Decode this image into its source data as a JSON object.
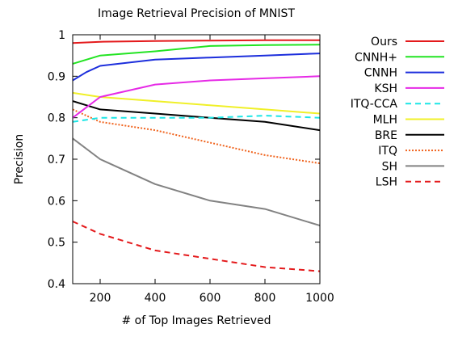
{
  "chart_data": {
    "type": "line",
    "title": "Image Retrieval Precision of MNIST",
    "xlabel": "# of Top Images Retrieved",
    "ylabel": "Precision",
    "xlim": [
      100,
      1000
    ],
    "ylim": [
      0.4,
      1.0
    ],
    "xticks": [
      200,
      400,
      600,
      800,
      1000
    ],
    "yticks": [
      0.4,
      0.5,
      0.6,
      0.7,
      0.8,
      0.9,
      1.0
    ],
    "ytick_labels": [
      "0.4",
      "0.5",
      "0.6",
      "0.7",
      "0.8",
      "0.9",
      "1"
    ],
    "xtick_labels": [
      "200",
      "400",
      "600",
      "800",
      "1000"
    ],
    "grid": false,
    "legend_position": "outside-right",
    "series": [
      {
        "name": "Ours",
        "color": "#e41a1c",
        "dash": "solid",
        "x": [
          100,
          200,
          400,
          600,
          800,
          1000
        ],
        "y": [
          0.98,
          0.983,
          0.985,
          0.986,
          0.987,
          0.987
        ]
      },
      {
        "name": "CNNH+",
        "color": "#22e422",
        "dash": "solid",
        "x": [
          100,
          200,
          400,
          600,
          800,
          1000
        ],
        "y": [
          0.93,
          0.95,
          0.96,
          0.973,
          0.975,
          0.976
        ]
      },
      {
        "name": "CNNH",
        "color": "#1c2edc",
        "dash": "solid",
        "x": [
          100,
          150,
          200,
          400,
          600,
          800,
          1000
        ],
        "y": [
          0.89,
          0.91,
          0.925,
          0.94,
          0.945,
          0.95,
          0.955
        ]
      },
      {
        "name": "KSH",
        "color": "#e62ae6",
        "dash": "solid",
        "x": [
          100,
          200,
          400,
          600,
          800,
          1000
        ],
        "y": [
          0.8,
          0.85,
          0.88,
          0.89,
          0.895,
          0.9
        ]
      },
      {
        "name": "ITQ-CCA",
        "color": "#1ce6e6",
        "dash": "dashed",
        "x": [
          100,
          200,
          400,
          600,
          800,
          1000
        ],
        "y": [
          0.79,
          0.8,
          0.8,
          0.8,
          0.805,
          0.8
        ]
      },
      {
        "name": "MLH",
        "color": "#f0f028",
        "dash": "solid",
        "x": [
          100,
          200,
          400,
          600,
          800,
          1000
        ],
        "y": [
          0.86,
          0.85,
          0.84,
          0.83,
          0.82,
          0.81
        ]
      },
      {
        "name": "BRE",
        "color": "#000000",
        "dash": "solid",
        "x": [
          100,
          200,
          400,
          600,
          800,
          1000
        ],
        "y": [
          0.84,
          0.82,
          0.81,
          0.8,
          0.79,
          0.77
        ]
      },
      {
        "name": "ITQ",
        "color": "#f0641e",
        "dash": "dotted",
        "x": [
          100,
          200,
          400,
          600,
          800,
          1000
        ],
        "y": [
          0.82,
          0.79,
          0.77,
          0.74,
          0.71,
          0.69
        ]
      },
      {
        "name": "SH",
        "color": "#828282",
        "dash": "solid",
        "x": [
          100,
          200,
          400,
          600,
          800,
          1000
        ],
        "y": [
          0.75,
          0.7,
          0.64,
          0.6,
          0.58,
          0.54
        ]
      },
      {
        "name": "LSH",
        "color": "#e41a1c",
        "dash": "dashed",
        "x": [
          100,
          200,
          400,
          600,
          800,
          1000
        ],
        "y": [
          0.55,
          0.52,
          0.48,
          0.46,
          0.44,
          0.43
        ]
      }
    ]
  }
}
